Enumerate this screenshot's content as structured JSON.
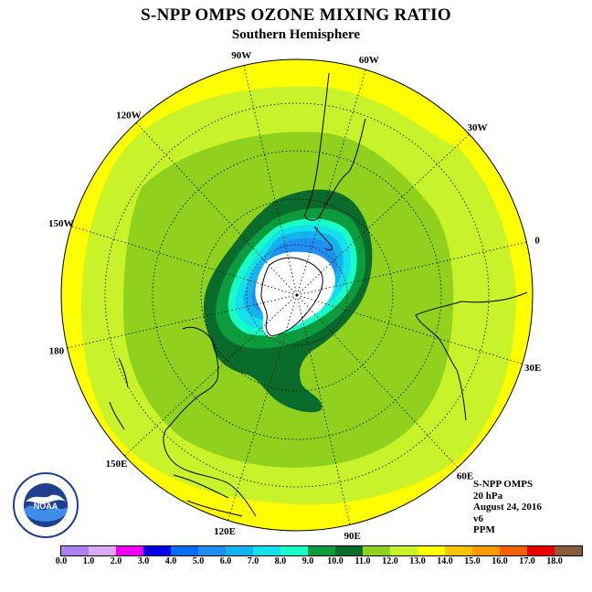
{
  "header": {
    "title": "S-NPP OMPS OZONE MIXING RATIO",
    "subtitle": "Southern Hemisphere"
  },
  "map": {
    "projection": "south-polar-stereographic",
    "longitude_labels": [
      "90W",
      "60W",
      "120W",
      "30W",
      "150W",
      "0",
      "180",
      "30E",
      "150E",
      "60E",
      "120E",
      "90E"
    ],
    "field_levels_ppm_center_to_edge": [
      {
        "label": "no data (polar night)",
        "color": "#ffffff"
      },
      {
        "label": "5.0-6.0",
        "color": "#1e8ef0"
      },
      {
        "label": "6.0-7.0",
        "color": "#12b4f0"
      },
      {
        "label": "7.0-8.0",
        "color": "#13e0ec"
      },
      {
        "label": "8.0-9.0",
        "color": "#17fcc8"
      },
      {
        "label": "9.0-10.0",
        "color": "#0c9c3e"
      },
      {
        "label": "10.0-11.0",
        "color": "#096b2c"
      },
      {
        "label": "11.0-12.0",
        "color": "#8fd11c"
      },
      {
        "label": "12.0-13.0",
        "color": "#c8f22a"
      },
      {
        "label": "13.0-14.0",
        "color": "#ffff00"
      }
    ]
  },
  "info": {
    "instrument": "S-NPP OMPS",
    "level": "20 hPa",
    "date": "August 24, 2016",
    "version": "v6",
    "units": "PPM"
  },
  "logo": {
    "text": "NOAA",
    "ring_text": "NATIONAL OCEANIC AND ATMOSPHERIC ADMINISTRATION · U.S. DEPARTMENT OF COMMERCE"
  },
  "colorbar": {
    "colors": [
      "#b07ff0",
      "#dba9f0",
      "#f000f0",
      "#0000e6",
      "#0b6cf0",
      "#1e8ef0",
      "#12b4f0",
      "#13e0ec",
      "#17fcc8",
      "#0c9c3e",
      "#096b2c",
      "#8fd11c",
      "#c8f22a",
      "#ffff00",
      "#f7c400",
      "#f79a00",
      "#f26200",
      "#e80000",
      "#8a5a3c"
    ],
    "tick_labels": [
      "0.0",
      "1.0",
      "2.0",
      "3.0",
      "4.0",
      "5.0",
      "6.0",
      "7.0",
      "8.0",
      "9.0",
      "10.0",
      "11.0",
      "12.0",
      "13.0",
      "14.0",
      "15.0",
      "16.0",
      "17.0",
      "18.0"
    ]
  }
}
